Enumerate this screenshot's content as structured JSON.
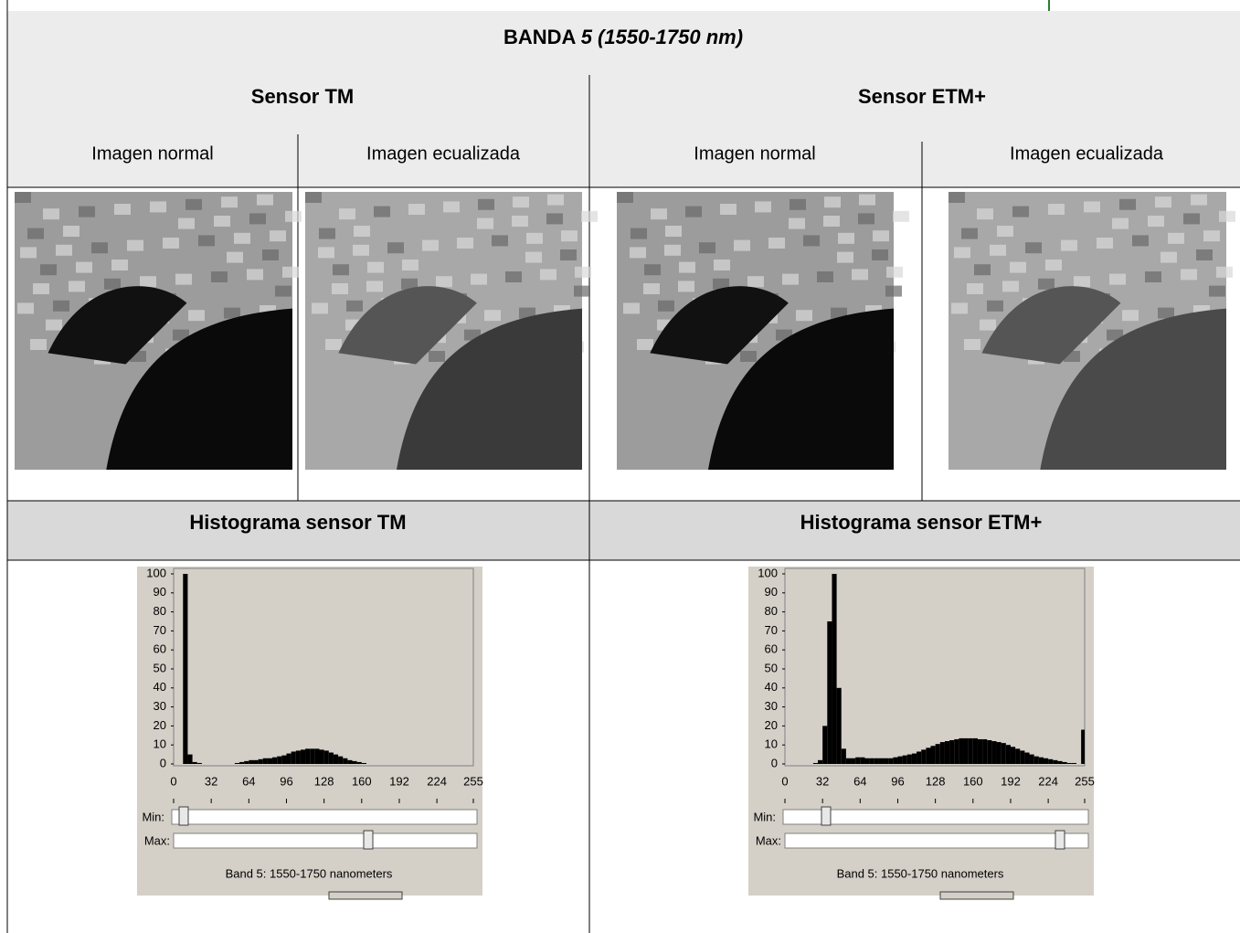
{
  "table": {
    "title": {
      "bold": "BANDA",
      "italic": "5 (1550-1750 nm)"
    },
    "sensors": [
      "Sensor TM",
      "Sensor ETM+"
    ],
    "columns": [
      "Imagen normal",
      "Imagen ecualizada",
      "Imagen normal",
      "Imagen ecualizada"
    ],
    "histogram_headers": [
      "Histograma sensor TM",
      "Histograma sensor ETM+"
    ]
  },
  "histograms": [
    {
      "type": "histogram",
      "xlim": [
        0,
        255
      ],
      "ylim": [
        0,
        100
      ],
      "xticks": [
        0,
        32,
        64,
        96,
        128,
        160,
        192,
        224,
        255
      ],
      "yticks": [
        0,
        10,
        20,
        30,
        40,
        50,
        60,
        70,
        80,
        90,
        100
      ],
      "bins": [
        0,
        4,
        8,
        12,
        16,
        20,
        24,
        28,
        32,
        36,
        40,
        44,
        48,
        52,
        56,
        60,
        64,
        68,
        72,
        76,
        80,
        84,
        88,
        92,
        96,
        100,
        104,
        108,
        112,
        116,
        120,
        124,
        128,
        132,
        136,
        140,
        144,
        148,
        152,
        156,
        160,
        164,
        168,
        172,
        176,
        180,
        184,
        188,
        192,
        196,
        200,
        204,
        208,
        212,
        216,
        220,
        224,
        228,
        232,
        236,
        240,
        244,
        248,
        252,
        255
      ],
      "values": [
        0,
        0,
        100,
        5,
        1,
        0.5,
        0,
        0,
        0,
        0,
        0,
        0,
        0,
        0.5,
        1,
        1.5,
        2,
        2,
        2.5,
        3,
        3,
        3.5,
        4,
        4.5,
        5.5,
        6.5,
        7,
        7.5,
        8,
        8,
        8,
        7.5,
        7,
        6,
        5,
        4,
        3,
        2,
        1.5,
        1,
        0.5,
        0,
        0,
        0,
        0,
        0,
        0,
        0,
        0,
        0,
        0,
        0,
        0,
        0,
        0,
        0,
        0,
        0,
        0,
        0,
        0,
        0,
        0,
        0
      ],
      "color": "#000000",
      "min_label": "Min:",
      "max_label": "Max:",
      "caption": "Band 5: 1550-1750 nanometers"
    },
    {
      "type": "histogram",
      "xlim": [
        0,
        255
      ],
      "ylim": [
        0,
        100
      ],
      "xticks": [
        0,
        32,
        64,
        96,
        128,
        160,
        192,
        224,
        255
      ],
      "yticks": [
        0,
        10,
        20,
        30,
        40,
        50,
        60,
        70,
        80,
        90,
        100
      ],
      "bins": [
        0,
        4,
        8,
        12,
        16,
        20,
        24,
        28,
        32,
        36,
        40,
        44,
        48,
        52,
        56,
        60,
        64,
        68,
        72,
        76,
        80,
        84,
        88,
        92,
        96,
        100,
        104,
        108,
        112,
        116,
        120,
        124,
        128,
        132,
        136,
        140,
        144,
        148,
        152,
        156,
        160,
        164,
        168,
        172,
        176,
        180,
        184,
        188,
        192,
        196,
        200,
        204,
        208,
        212,
        216,
        220,
        224,
        228,
        232,
        236,
        240,
        244,
        248,
        252,
        255
      ],
      "values": [
        0,
        0,
        0,
        0,
        0,
        0,
        0.5,
        2,
        20,
        75,
        100,
        40,
        8,
        3,
        3,
        3.5,
        3.5,
        3,
        3,
        3,
        3,
        3,
        3,
        3.5,
        4,
        4.5,
        5,
        5.5,
        6.5,
        7.5,
        8.5,
        9.5,
        10.5,
        11.5,
        12,
        12.5,
        13,
        13.5,
        13.5,
        13.5,
        13.5,
        13,
        13,
        12.5,
        12,
        11.5,
        11,
        10,
        9,
        8,
        7,
        6,
        5,
        4,
        3.5,
        3,
        2.5,
        2,
        1.5,
        1,
        0.5,
        0.5,
        0,
        18
      ],
      "color": "#000000",
      "min_label": "Min:",
      "max_label": "Max:",
      "caption": "Band 5: 1550-1750 nanometers"
    }
  ]
}
